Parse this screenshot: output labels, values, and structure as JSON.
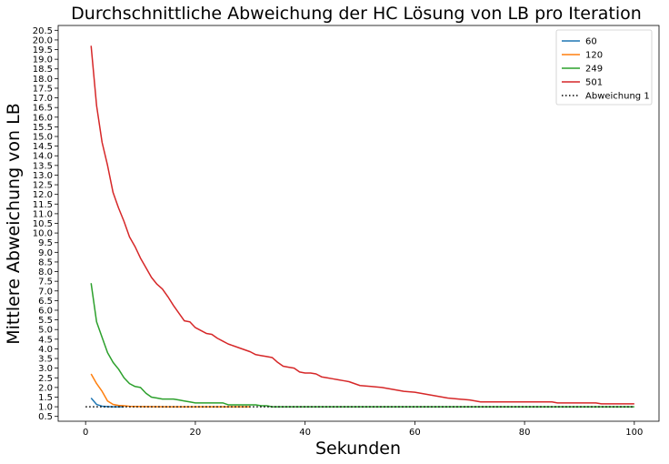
{
  "chart_data": {
    "type": "line",
    "title": "Durchschnittliche Abweichung der HC Lösung von LB pro Iteration",
    "xlabel": "Sekunden",
    "ylabel": "Mittlere Abweichung von LB",
    "xlim": [
      -5,
      104.5
    ],
    "ylim": [
      0.25,
      20.75
    ],
    "xticks": [
      0,
      20,
      40,
      60,
      80,
      100
    ],
    "yticks": [
      0.5,
      1.0,
      1.5,
      2.0,
      2.5,
      3.0,
      3.5,
      4.0,
      4.5,
      5.0,
      5.5,
      6.0,
      6.5,
      7.0,
      7.5,
      8.0,
      8.5,
      9.0,
      9.5,
      10.0,
      10.5,
      11.0,
      11.5,
      12.0,
      12.5,
      13.0,
      13.5,
      14.0,
      14.5,
      15.0,
      15.5,
      16.0,
      16.5,
      17.0,
      17.5,
      18.0,
      18.5,
      19.0,
      19.5,
      20.0,
      20.5
    ],
    "grid": false,
    "legend_position": "top-right",
    "series": [
      {
        "name": "60",
        "color": "#1f77b4",
        "style": "solid",
        "x": [
          1,
          2,
          3,
          4,
          5,
          6,
          7
        ],
        "y": [
          1.45,
          1.12,
          1.03,
          1.01,
          1.0,
          1.0,
          1.0
        ]
      },
      {
        "name": "120",
        "color": "#ff7f0e",
        "style": "solid",
        "x": [
          1,
          2,
          3,
          4,
          5,
          6,
          7,
          8,
          10,
          15,
          20,
          30
        ],
        "y": [
          2.7,
          2.2,
          1.8,
          1.3,
          1.12,
          1.07,
          1.05,
          1.02,
          1.01,
          1.0,
          1.0,
          1.0
        ]
      },
      {
        "name": "249",
        "color": "#2ca02c",
        "style": "solid",
        "x": [
          1,
          2,
          3,
          4,
          5,
          6,
          7,
          8,
          9,
          10,
          11,
          12,
          13,
          14,
          15,
          16,
          17,
          18,
          19,
          20,
          22,
          24,
          25,
          26,
          28,
          30,
          31,
          32,
          33,
          34,
          36,
          40,
          50,
          60,
          70,
          80,
          90,
          100
        ],
        "y": [
          7.4,
          5.4,
          4.6,
          3.8,
          3.3,
          2.95,
          2.5,
          2.2,
          2.05,
          2.0,
          1.7,
          1.5,
          1.45,
          1.4,
          1.4,
          1.4,
          1.35,
          1.3,
          1.25,
          1.2,
          1.2,
          1.2,
          1.2,
          1.1,
          1.1,
          1.1,
          1.1,
          1.05,
          1.05,
          1.0,
          1.0,
          1.0,
          1.0,
          1.0,
          1.0,
          1.0,
          1.0,
          1.0
        ]
      },
      {
        "name": "501",
        "color": "#d62728",
        "style": "solid",
        "x": [
          1,
          2,
          3,
          4,
          5,
          6,
          7,
          8,
          9,
          10,
          11,
          12,
          13,
          14,
          15,
          16,
          17,
          18,
          19,
          20,
          22,
          23,
          24,
          25,
          26,
          27,
          28,
          29,
          30,
          31,
          32,
          33,
          34,
          35,
          36,
          37,
          38,
          39,
          40,
          41,
          42,
          43,
          44,
          45,
          46,
          47,
          48,
          49,
          50,
          52,
          54,
          56,
          58,
          60,
          62,
          64,
          66,
          68,
          70,
          72,
          75,
          80,
          85,
          86,
          90,
          93,
          94,
          100
        ],
        "y": [
          19.7,
          16.6,
          14.7,
          13.5,
          12.1,
          11.3,
          10.6,
          9.8,
          9.3,
          8.7,
          8.2,
          7.7,
          7.35,
          7.1,
          6.7,
          6.25,
          5.85,
          5.45,
          5.4,
          5.1,
          4.8,
          4.75,
          4.55,
          4.4,
          4.25,
          4.15,
          4.05,
          3.95,
          3.85,
          3.7,
          3.65,
          3.6,
          3.55,
          3.3,
          3.1,
          3.05,
          3.0,
          2.8,
          2.75,
          2.75,
          2.7,
          2.55,
          2.5,
          2.45,
          2.4,
          2.35,
          2.3,
          2.2,
          2.1,
          2.05,
          2.0,
          1.9,
          1.8,
          1.75,
          1.65,
          1.55,
          1.45,
          1.4,
          1.35,
          1.25,
          1.25,
          1.25,
          1.25,
          1.2,
          1.2,
          1.2,
          1.15,
          1.15
        ]
      },
      {
        "name": "Abweichung 1",
        "color": "#000000",
        "style": "dotted",
        "x": [
          0,
          100
        ],
        "y": [
          1.0,
          1.0
        ]
      }
    ]
  }
}
